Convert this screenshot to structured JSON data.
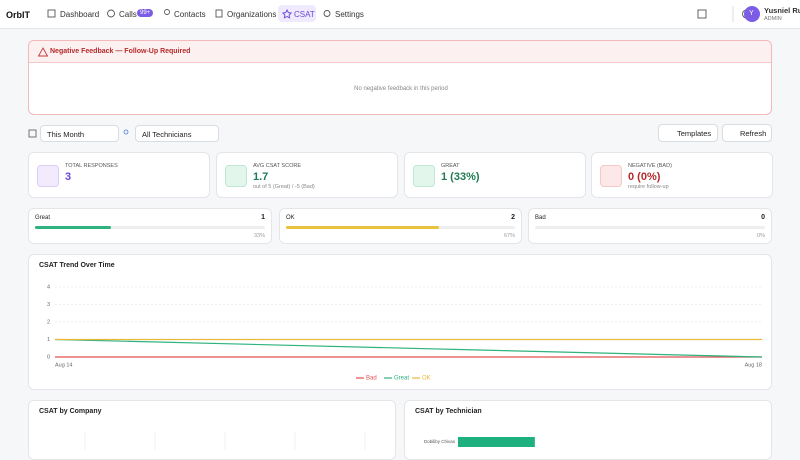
{
  "nav": {
    "brand": "OrbIT",
    "items": [
      "Dashboard",
      "Calls",
      "Contacts",
      "Organizations",
      "CSAT",
      "Settings"
    ],
    "calls_badge": "99+"
  },
  "user": {
    "initial": "Y",
    "name": "Yusniel Ruiz",
    "role": "ADMIN"
  },
  "alert": {
    "title": "Negative Feedback — Follow-Up Required",
    "empty": "No negative feedback in this period"
  },
  "filters": {
    "period": "This Month",
    "technician": "All Technicians",
    "templates": "Templates",
    "refresh": "Refresh"
  },
  "kpis": [
    {
      "label": "TOTAL RESPONSES",
      "value": "3"
    },
    {
      "label": "AVG CSAT SCORE",
      "value": "1.7",
      "note": "out of 5 (Great) / -5 (Bad)"
    },
    {
      "label": "GREAT",
      "value": "1 (33%)"
    },
    {
      "label": "NEGATIVE (BAD)",
      "value": "0 (0%)",
      "note": "require follow-up"
    }
  ],
  "breakdown": [
    {
      "label": "Great",
      "count": 1,
      "percent": 33,
      "percent_label": "33%",
      "color": "#2eb27e"
    },
    {
      "label": "OK",
      "count": 2,
      "percent": 67,
      "percent_label": "67%",
      "color": "#e9c33f"
    },
    {
      "label": "Bad",
      "count": 0,
      "percent": 0,
      "percent_label": "0%",
      "color": "#e05252"
    }
  ],
  "chart_data": [
    {
      "type": "line",
      "title": "CSAT Trend Over Time",
      "categories": [
        "Aug 14",
        "Aug 18"
      ],
      "ylim": [
        0,
        4
      ],
      "yticks": [
        0,
        1,
        2,
        3,
        4
      ],
      "grid": true,
      "legend": "bottom",
      "series": [
        {
          "name": "Bad",
          "color": "#e05252",
          "values": [
            0,
            0
          ]
        },
        {
          "name": "Great",
          "color": "#2eb27e",
          "values": [
            1,
            0
          ]
        },
        {
          "name": "OK",
          "color": "#e9b83f",
          "values": [
            1,
            1
          ]
        }
      ]
    },
    {
      "type": "bar",
      "title": "CSAT by Company"
    },
    {
      "type": "barh",
      "title": "CSAT by Technician",
      "categories": [
        "Dobiliby Chivas"
      ],
      "values": [
        1.7
      ],
      "xlim": [
        0,
        5
      ],
      "color": "#1fb07f"
    }
  ]
}
